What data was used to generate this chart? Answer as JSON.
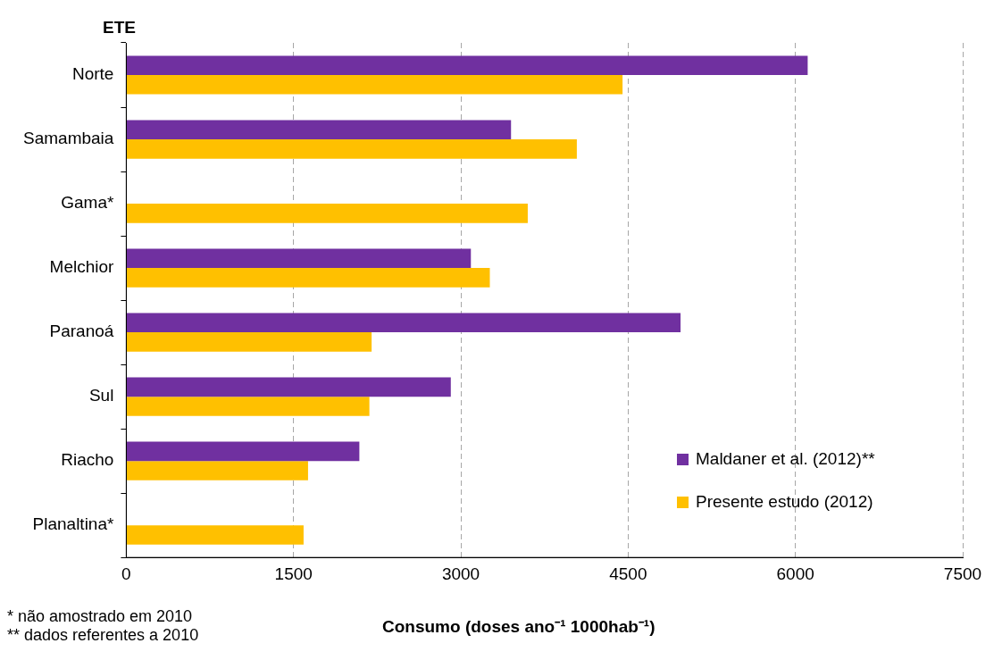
{
  "chart_data": {
    "type": "bar",
    "orientation": "horizontal",
    "ylabel": "ETE",
    "xlabel": "Consumo (doses ano⁻¹ 1000hab⁻¹)",
    "categories": [
      "Norte",
      "Samambaia",
      "Gama*",
      "Melchior",
      "Paranoá",
      "Sul",
      "Riacho",
      "Planaltina*"
    ],
    "series": [
      {
        "name": "Maldaner et al. (2012)**",
        "color": "#7030a0",
        "values": [
          6110,
          3450,
          null,
          3090,
          4970,
          2910,
          2090,
          null
        ]
      },
      {
        "name": "Presente estudo (2012)",
        "color": "#ffc000",
        "values": [
          4450,
          4040,
          3600,
          3260,
          2200,
          2180,
          1630,
          1590
        ]
      }
    ],
    "xlim": [
      0,
      7500
    ],
    "xticks": [
      0,
      1500,
      3000,
      4500,
      6000,
      7500
    ],
    "grid": "x",
    "legend": "bottom right",
    "annotations": [
      "* não amostrado em 2010",
      "** dados referentes a 2010"
    ]
  }
}
